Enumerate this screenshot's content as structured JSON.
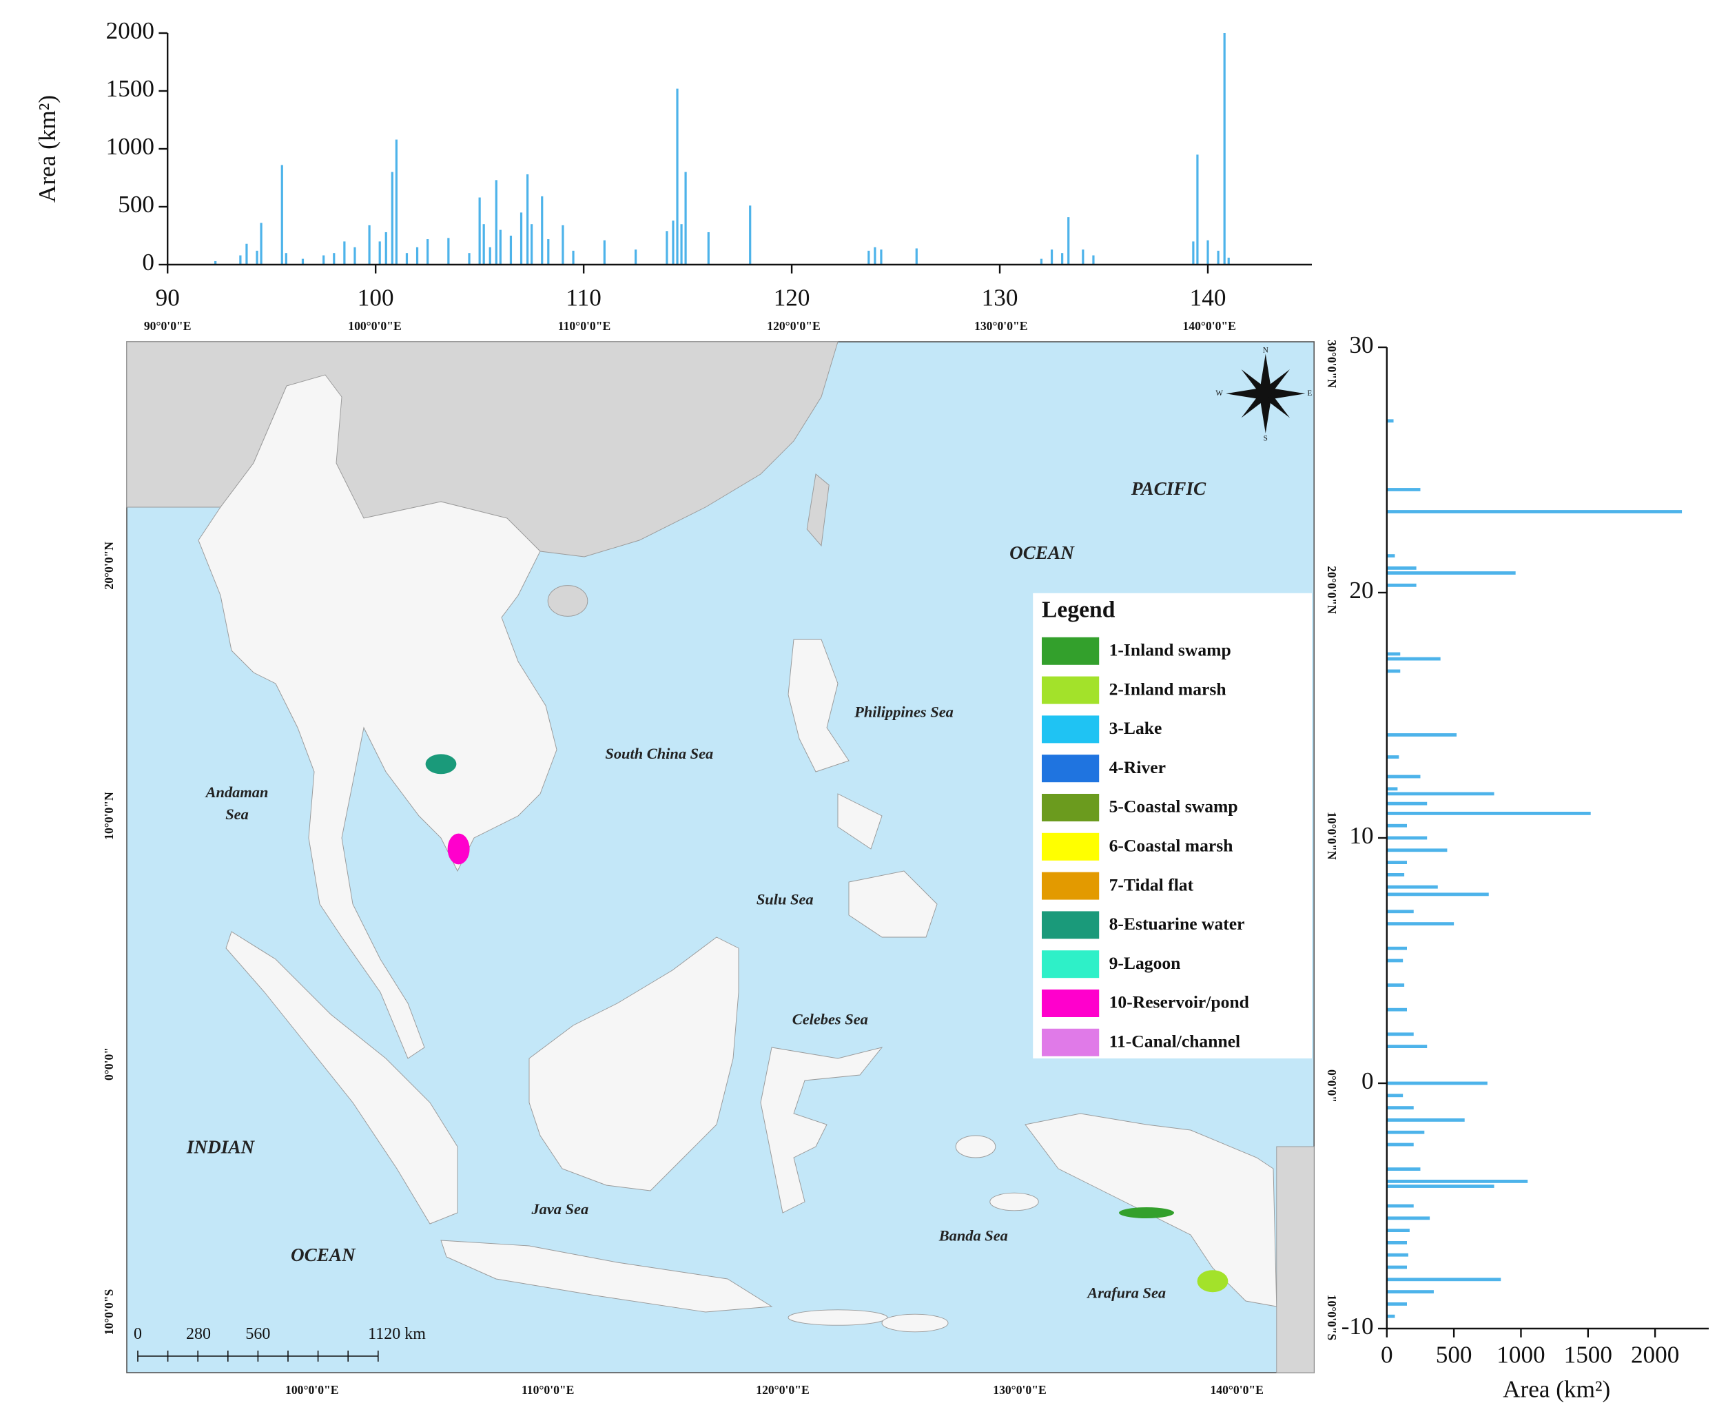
{
  "chart_data": [
    {
      "type": "bar",
      "orientation": "vertical",
      "ylabel": "Area (km²)",
      "color": "#4db3ea",
      "x": [
        92.3,
        93.5,
        93.8,
        94.3,
        94.5,
        95.5,
        95.7,
        96.5,
        97.5,
        98,
        98.5,
        99,
        99.7,
        100.2,
        100.5,
        100.8,
        101,
        101.5,
        102,
        102.5,
        103.5,
        104.5,
        105,
        105.2,
        105.5,
        105.8,
        106,
        106.5,
        107,
        107.3,
        107.5,
        108,
        108.3,
        109,
        109.5,
        111,
        112.5,
        114,
        114.3,
        114.5,
        114.7,
        114.9,
        116,
        118,
        123.7,
        124,
        124.3,
        126,
        132,
        132.5,
        133,
        133.3,
        134,
        134.5,
        139.3,
        139.5,
        140,
        140.5,
        140.8,
        141
      ],
      "values": [
        30,
        80,
        180,
        120,
        360,
        860,
        100,
        50,
        80,
        100,
        200,
        150,
        340,
        200,
        280,
        800,
        1080,
        100,
        150,
        220,
        230,
        100,
        580,
        350,
        150,
        730,
        300,
        250,
        450,
        780,
        350,
        590,
        220,
        340,
        120,
        210,
        130,
        290,
        380,
        1520,
        350,
        800,
        280,
        510,
        120,
        150,
        130,
        140,
        50,
        130,
        100,
        410,
        130,
        80,
        200,
        950,
        210,
        120,
        2000,
        60
      ],
      "xlim": [
        90,
        145
      ],
      "xticks": [
        90,
        100,
        110,
        120,
        130,
        140
      ],
      "ylim": [
        0,
        2000
      ],
      "yticks": [
        0,
        500,
        1000,
        1500,
        2000
      ]
    },
    {
      "type": "bar",
      "orientation": "horizontal",
      "xlabel": "Area (km²)",
      "color": "#4db3ea",
      "y": [
        27,
        24.2,
        23.3,
        21.5,
        21,
        20.8,
        20.3,
        17.5,
        17.3,
        16.8,
        14.2,
        13.3,
        12.5,
        12,
        11.8,
        11.4,
        11,
        10.5,
        10,
        9.5,
        9,
        8.5,
        8,
        7.7,
        7,
        6.5,
        5.5,
        5,
        4,
        3,
        2,
        1.5,
        0,
        -0.5,
        -1,
        -1.5,
        -2,
        -2.5,
        -3.5,
        -4,
        -4.2,
        -5,
        -5.5,
        -6,
        -6.5,
        -7,
        -7.5,
        -8,
        -8.5,
        -9,
        -9.5
      ],
      "values": [
        50,
        250,
        2200,
        60,
        220,
        960,
        220,
        100,
        400,
        100,
        520,
        90,
        250,
        80,
        800,
        300,
        1520,
        150,
        300,
        450,
        150,
        130,
        380,
        760,
        200,
        500,
        150,
        120,
        130,
        150,
        200,
        300,
        750,
        120,
        200,
        580,
        280,
        200,
        250,
        1050,
        800,
        200,
        320,
        170,
        150,
        160,
        150,
        850,
        350,
        150,
        60
      ],
      "xlim": [
        0,
        2400
      ],
      "xticks": [
        0,
        500,
        1000,
        1500,
        2000
      ],
      "ylim": [
        -10,
        30
      ],
      "yticks": [
        -10,
        0,
        10,
        20,
        30
      ]
    },
    {
      "type": "map",
      "graticule_top": [
        "90°0'0\"E",
        "100°0'0\"E",
        "110°0'0\"E",
        "120°0'0\"E",
        "130°0'0\"E",
        "140°0'0\"E"
      ],
      "graticule_bottom": [
        "100°0'0\"E",
        "110°0'0\"E",
        "120°0'0\"E",
        "130°0'0\"E",
        "140°0'0\"E"
      ],
      "graticule_left": [
        "20°0'0\"N",
        "10°0'0\"N",
        "0°0'0\"",
        "10°0'0\"S"
      ],
      "graticule_right": [
        "30°0'0\"N",
        "20°0'0\"N",
        "10°0'0\"N",
        "0°0'0\"",
        "10°0'0\"S"
      ],
      "places": [
        "PACIFIC",
        "OCEAN",
        "Philippines Sea",
        "South China Sea",
        "Andaman",
        "Sea",
        "Sulu Sea",
        "Celebes Sea",
        "INDIAN",
        "OCEAN",
        "Java Sea",
        "Banda Sea",
        "Arafura Sea"
      ],
      "compass": [
        "N",
        "E",
        "S",
        "W"
      ],
      "legend_title": "Legend",
      "legend": [
        {
          "name": "1-Inland swamp",
          "color": "#33a02c"
        },
        {
          "name": "2-Inland marsh",
          "color": "#a3e22a"
        },
        {
          "name": "3-Lake",
          "color": "#1fc3f3"
        },
        {
          "name": "4-River",
          "color": "#1f74e0"
        },
        {
          "name": "5-Coastal swamp",
          "color": "#6b9b1e"
        },
        {
          "name": "6-Coastal marsh",
          "color": "#ffff00"
        },
        {
          "name": "7-Tidal flat",
          "color": "#e39a00"
        },
        {
          "name": "8-Estuarine water",
          "color": "#1a9a7a"
        },
        {
          "name": "9-Lagoon",
          "color": "#2ef0c8"
        },
        {
          "name": "10-Reservoir/pond",
          "color": "#ff00cc"
        },
        {
          "name": "11-Canal/channel",
          "color": "#e07ae8"
        }
      ],
      "scale_labels": [
        "0",
        "280",
        "560",
        "1120 km"
      ]
    }
  ]
}
